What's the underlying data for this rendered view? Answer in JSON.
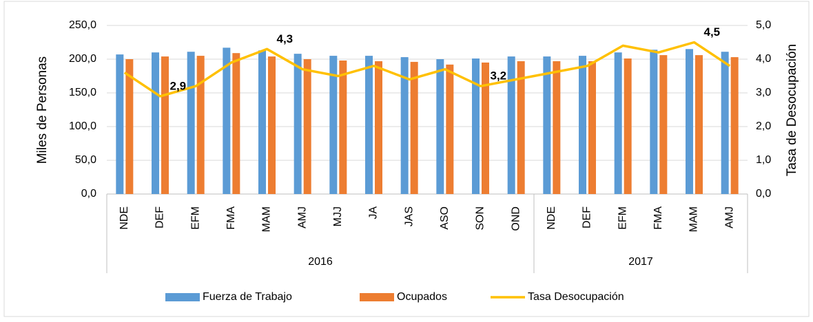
{
  "chart_data": {
    "type": "bar_line",
    "category_groups": [
      {
        "name": "2016",
        "categories": [
          "NDE",
          "DEF",
          "EFM",
          "FMA",
          "MAM",
          "AMJ",
          "MJJ",
          "JA",
          "JAS",
          "ASO",
          "SON",
          "OND"
        ]
      },
      {
        "name": "2017",
        "categories": [
          "NDE",
          "DEF",
          "EFM",
          "FMA",
          "MAM",
          "AMJ"
        ]
      }
    ],
    "y_label": "Miles de Personas",
    "y2_label": "Tasa de Desocupación",
    "series": [
      {
        "name": "Fuerza de Trabajo",
        "type": "bar",
        "color": "#5b9bd5",
        "values": [
          207,
          210,
          211,
          217,
          213,
          208,
          205,
          205,
          203,
          200,
          201,
          204,
          204,
          205,
          210,
          214,
          215,
          211
        ]
      },
      {
        "name": "Ocupados",
        "type": "bar",
        "color": "#ed7d31",
        "values": [
          200,
          204,
          205,
          209,
          204,
          200,
          198,
          197,
          196,
          192,
          195,
          197,
          197,
          197,
          201,
          206,
          206,
          203
        ]
      },
      {
        "name": "Tasa Desocupación",
        "type": "line",
        "axis": "y2",
        "color": "#ffc000",
        "values": [
          3.6,
          2.9,
          3.2,
          3.9,
          4.3,
          3.7,
          3.5,
          3.8,
          3.4,
          3.7,
          3.2,
          3.4,
          3.6,
          3.8,
          4.4,
          4.2,
          4.5,
          3.8
        ],
        "value_labels": [
          null,
          "2,9",
          null,
          null,
          "4,3",
          null,
          null,
          null,
          null,
          null,
          "3,2",
          null,
          null,
          null,
          null,
          null,
          "4,5",
          null
        ]
      }
    ],
    "ylim": [
      0,
      250
    ],
    "yticks": [
      {
        "value": 0,
        "label": "0,0"
      },
      {
        "value": 50,
        "label": "50,0"
      },
      {
        "value": 100,
        "label": "100,0"
      },
      {
        "value": 150,
        "label": "150,0"
      },
      {
        "value": 200,
        "label": "200,0"
      },
      {
        "value": 250,
        "label": "250,0"
      }
    ],
    "y2lim": [
      0,
      5
    ],
    "y2ticks": [
      {
        "value": 0,
        "label": "0,0"
      },
      {
        "value": 1,
        "label": "1,0"
      },
      {
        "value": 2,
        "label": "2,0"
      },
      {
        "value": 3,
        "label": "3,0"
      },
      {
        "value": 4,
        "label": "4,0"
      },
      {
        "value": 5,
        "label": "5,0"
      }
    ],
    "grid": true,
    "legend": "bottom"
  }
}
